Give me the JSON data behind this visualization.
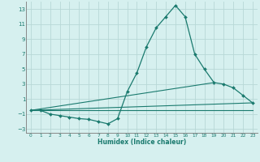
{
  "xlabel": "Humidex (Indice chaleur)",
  "ylabel": "",
  "background_color": "#d6f0ef",
  "grid_color": "#b8d8d6",
  "line_color": "#1a7a6e",
  "xlim": [
    -0.5,
    23.5
  ],
  "ylim": [
    -3.5,
    14.0
  ],
  "xticks": [
    0,
    1,
    2,
    3,
    4,
    5,
    6,
    7,
    8,
    9,
    10,
    11,
    12,
    13,
    14,
    15,
    16,
    17,
    18,
    19,
    20,
    21,
    22,
    23
  ],
  "yticks": [
    -3,
    -1,
    1,
    3,
    5,
    7,
    9,
    11,
    13
  ],
  "series": [
    {
      "x": [
        0,
        1,
        2,
        3,
        4,
        5,
        6,
        7,
        8,
        9,
        10,
        11,
        12,
        13,
        14,
        15,
        16,
        17,
        18,
        19,
        20,
        21,
        22,
        23
      ],
      "y": [
        -0.5,
        -0.5,
        -1.0,
        -1.2,
        -1.4,
        -1.6,
        -1.7,
        -2.0,
        -2.3,
        -1.6,
        2.0,
        4.5,
        8.0,
        10.5,
        12.0,
        13.5,
        12.0,
        7.0,
        5.0,
        3.2,
        3.0,
        2.5,
        1.5,
        0.5
      ]
    },
    {
      "x": [
        0,
        23
      ],
      "y": [
        -0.5,
        0.5
      ]
    },
    {
      "x": [
        0,
        19
      ],
      "y": [
        -0.5,
        3.2
      ]
    },
    {
      "x": [
        0,
        23
      ],
      "y": [
        -0.5,
        -0.5
      ]
    }
  ]
}
